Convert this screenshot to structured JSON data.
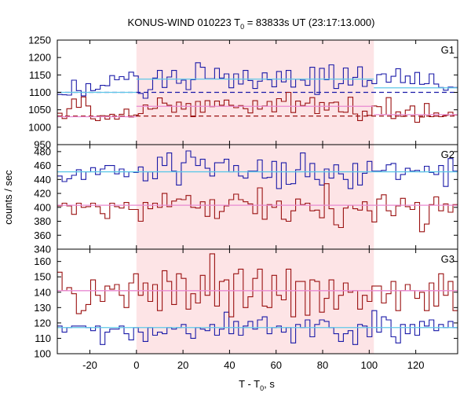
{
  "figure": {
    "title_prefix": "KONUS-WIND 010223 T",
    "title_sub": "0",
    "title_suffix": " = 83833s UT (23:17:13.000)",
    "xlabel_prefix": "T - T",
    "xlabel_sub": "0",
    "xlabel_suffix": ", s",
    "ylabel": "counts / sec",
    "highlight_color": "#fde4e6"
  },
  "chart_data": [
    {
      "type": "line",
      "panel": "G1",
      "xlim": [
        -34,
        138
      ],
      "ylim": [
        950,
        1250
      ],
      "x_ticks": [
        -20,
        0,
        20,
        40,
        60,
        80,
        100,
        120
      ],
      "y_ticks": [
        950,
        1000,
        1050,
        1100,
        1150,
        1200,
        1250
      ],
      "interval": [
        0,
        102
      ],
      "bin_start": -34,
      "bin_width": 2.048,
      "series": [
        {
          "color": "#1a1aa8",
          "values": [
            1094,
            1093,
            1092,
            1135,
            1105,
            1090,
            1125,
            1105,
            1109,
            1120,
            1119,
            1148,
            1136,
            1145,
            1137,
            1158,
            1147,
            1097,
            1083,
            1108,
            1141,
            1163,
            1114,
            1144,
            1163,
            1126,
            1135,
            1108,
            1136,
            1185,
            1172,
            1139,
            1139,
            1169,
            1141,
            1153,
            1113,
            1153,
            1124,
            1163,
            1134,
            1111,
            1132,
            1156,
            1136,
            1116,
            1160,
            1130,
            1163,
            1115,
            1138,
            1135,
            1120,
            1172,
            1094,
            1169,
            1136,
            1179,
            1111,
            1125,
            1170,
            1121,
            1143,
            1173,
            1117,
            1134,
            1125,
            1151,
            1153,
            1129,
            1146,
            1168,
            1128,
            1147,
            1125,
            1157,
            1123,
            1125,
            1153,
            1124,
            1114,
            1106,
            1115,
            1114,
            1083,
            1117,
            1121,
            1143,
            1095,
            1138,
            1132,
            1135,
            1113,
            1101
          ],
          "fit_levels": [
            {
              "x0": -34,
              "x1": 0,
              "y": 1100
            },
            {
              "x0": 0,
              "x1": 102,
              "y": 1138
            },
            {
              "x0": 102,
              "x1": 138,
              "y": 1113
            }
          ],
          "fit_color": "#5fc8e8",
          "baseline": 1100,
          "baseline_style": "dashed"
        },
        {
          "color": "#9a1010",
          "values": [
            1040,
            1025,
            1053,
            1081,
            1057,
            1087,
            1061,
            1024,
            1019,
            1033,
            1023,
            1037,
            1023,
            1037,
            1052,
            1029,
            1035,
            1039,
            1064,
            1052,
            1054,
            1084,
            1069,
            1063,
            1043,
            1072,
            1052,
            1068,
            1030,
            1074,
            1043,
            1076,
            1059,
            1075,
            1063,
            1078,
            1063,
            1056,
            1062,
            1053,
            1041,
            1076,
            1052,
            1061,
            1074,
            1044,
            1082,
            1074,
            1100,
            1042,
            1075,
            1062,
            1069,
            1085,
            1039,
            1071,
            1049,
            1070,
            1072,
            1044,
            1043,
            1086,
            1038,
            1019,
            1046,
            1034,
            1061,
            1059,
            1036,
            1085,
            1025,
            1044,
            1031,
            1049,
            1061,
            1014,
            1029,
            1068,
            1030,
            1041,
            1030,
            1034,
            1043,
            1035,
            1041,
            1037,
            1037,
            1052,
            1008,
            1048,
            1031,
            1040,
            1032,
            1048
          ],
          "fit_levels": [
            {
              "x0": -34,
              "x1": 0,
              "y": 1030
            },
            {
              "x0": 0,
              "x1": 102,
              "y": 1060
            },
            {
              "x0": 102,
              "x1": 138,
              "y": 1036
            }
          ],
          "fit_color": "#e88ad2",
          "baseline": 1032,
          "baseline_style": "dashed"
        }
      ],
      "label": "G1"
    },
    {
      "type": "line",
      "panel": "G2",
      "xlim": [
        -34,
        138
      ],
      "ylim": [
        340,
        490
      ],
      "x_ticks": [
        -20,
        0,
        20,
        40,
        60,
        80,
        100,
        120
      ],
      "y_ticks": [
        340,
        360,
        380,
        400,
        420,
        440,
        460,
        480
      ],
      "interval": [
        0,
        102
      ],
      "bin_start": -34,
      "bin_width": 2.048,
      "series": [
        {
          "color": "#1a1aa8",
          "values": [
            445,
            437,
            441,
            446,
            454,
            440,
            451,
            457,
            447,
            455,
            460,
            460,
            448,
            455,
            444,
            451,
            450,
            458,
            438,
            451,
            441,
            472,
            460,
            478,
            452,
            432,
            464,
            481,
            472,
            460,
            469,
            456,
            445,
            464,
            464,
            469,
            451,
            460,
            445,
            442,
            452,
            452,
            468,
            442,
            443,
            466,
            427,
            464,
            433,
            434,
            454,
            478,
            444,
            463,
            440,
            432,
            455,
            442,
            461,
            448,
            440,
            427,
            463,
            432,
            449,
            466,
            452,
            452,
            453,
            461,
            463,
            440,
            447,
            456,
            452,
            453,
            451,
            459,
            450,
            447,
            460,
            430,
            470,
            452,
            437,
            461,
            465,
            442,
            461,
            450,
            432,
            464,
            459,
            448
          ],
          "fit_levels": [
            {
              "x0": -34,
              "x1": 138,
              "y": 451
            }
          ],
          "fit_color": "#5fc8e8"
        },
        {
          "color": "#9a1010",
          "values": [
            402,
            406,
            402,
            390,
            406,
            400,
            401,
            406,
            401,
            391,
            384,
            406,
            401,
            399,
            407,
            397,
            397,
            380,
            407,
            398,
            406,
            400,
            420,
            401,
            409,
            412,
            411,
            417,
            400,
            399,
            408,
            387,
            411,
            384,
            394,
            402,
            411,
            419,
            411,
            408,
            405,
            391,
            428,
            383,
            404,
            400,
            409,
            383,
            380,
            395,
            412,
            404,
            406,
            395,
            396,
            385,
            434,
            398,
            375,
            371,
            399,
            403,
            398,
            396,
            408,
            395,
            379,
            412,
            418,
            395,
            388,
            402,
            413,
            401,
            397,
            407,
            365,
            376,
            404,
            415,
            395,
            405,
            393,
            404,
            402,
            410,
            399,
            392,
            407,
            400,
            392,
            412,
            409,
            404
          ],
          "fit_levels": [
            {
              "x0": -34,
              "x1": 138,
              "y": 403
            }
          ],
          "fit_color": "#e88ad2"
        }
      ],
      "label": "G2"
    },
    {
      "type": "line",
      "panel": "G3",
      "xlim": [
        -34,
        138
      ],
      "ylim": [
        100,
        168
      ],
      "x_ticks": [
        -20,
        0,
        20,
        40,
        60,
        80,
        100,
        120
      ],
      "y_ticks": [
        100,
        110,
        120,
        130,
        140,
        150,
        160
      ],
      "interval": [
        0,
        102
      ],
      "bin_start": -34,
      "bin_width": 2.048,
      "series": [
        {
          "color": "#1a1aa8",
          "values": [
            118,
            114,
            117,
            118,
            118,
            118,
            117,
            115,
            118,
            106,
            114,
            116,
            116,
            118,
            113,
            109,
            117,
            114,
            108,
            117,
            112,
            114,
            113,
            117,
            116,
            117,
            119,
            113,
            110,
            117,
            116,
            115,
            119,
            112,
            116,
            127,
            113,
            121,
            112,
            118,
            121,
            116,
            122,
            124,
            113,
            117,
            118,
            114,
            117,
            107,
            119,
            117,
            122,
            111,
            119,
            122,
            121,
            117,
            113,
            108,
            113,
            115,
            106,
            119,
            118,
            111,
            128,
            114,
            124,
            122,
            111,
            107,
            119,
            113,
            119,
            112,
            121,
            118,
            122,
            115,
            119,
            117,
            121,
            117,
            124,
            122,
            113,
            114,
            122,
            117,
            119,
            126,
            117,
            124
          ],
          "fit_levels": [
            {
              "x0": -34,
              "x1": 138,
              "y": 117
            }
          ],
          "fit_color": "#5fc8e8"
        },
        {
          "color": "#9a1010",
          "values": [
            153,
            141,
            143,
            139,
            126,
            128,
            132,
            148,
            138,
            134,
            144,
            142,
            145,
            138,
            130,
            146,
            152,
            138,
            146,
            134,
            145,
            128,
            154,
            147,
            132,
            152,
            149,
            129,
            139,
            133,
            151,
            138,
            165,
            131,
            147,
            148,
            124,
            152,
            155,
            130,
            137,
            149,
            155,
            131,
            130,
            151,
            138,
            135,
            155,
            124,
            147,
            147,
            125,
            148,
            147,
            127,
            136,
            148,
            129,
            138,
            146,
            140,
            141,
            129,
            138,
            134,
            144,
            144,
            133,
            139,
            147,
            128,
            141,
            145,
            141,
            136,
            140,
            128,
            146,
            131,
            152,
            138,
            147,
            128,
            136,
            148,
            138,
            148,
            131,
            132,
            144,
            137,
            154,
            151
          ],
          "fit_levels": [
            {
              "x0": -34,
              "x1": 138,
              "y": 141
            }
          ],
          "fit_color": "#e88ad2"
        }
      ],
      "label": "G3"
    }
  ]
}
